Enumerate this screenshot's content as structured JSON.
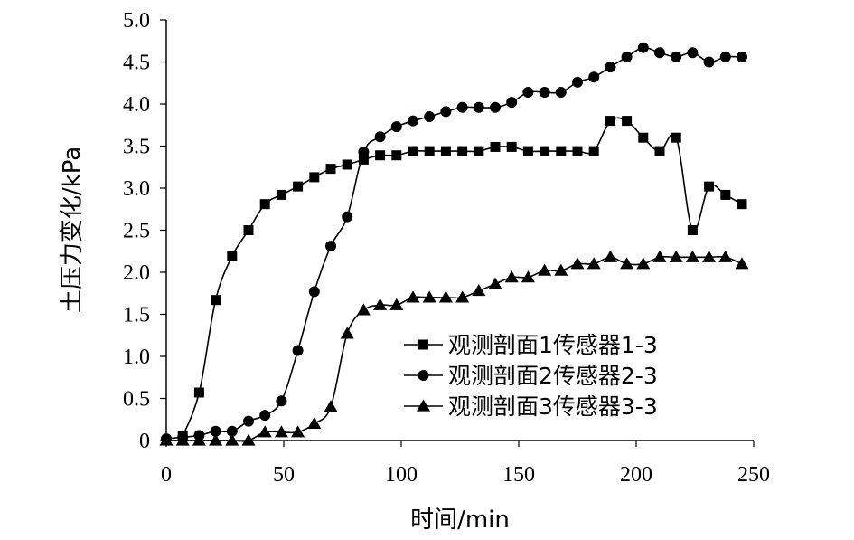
{
  "chart_data": {
    "type": "line",
    "title": "",
    "xlabel": "时间/min",
    "ylabel": "土压力变化/kPa",
    "xlim": [
      0,
      250
    ],
    "ylim": [
      0,
      5
    ],
    "x_ticks": [
      "0",
      "50",
      "100",
      "150",
      "200",
      "250"
    ],
    "y_ticks": [
      "0",
      "0.5",
      "1.0",
      "1.5",
      "2.0",
      "2.5",
      "3.0",
      "3.5",
      "4.0",
      "4.5",
      "5.0"
    ],
    "grid": false,
    "legend_position": "bottom-right",
    "series": [
      {
        "name": "观测剖面1传感器1-3",
        "marker": "square",
        "x": [
          7,
          14,
          21,
          28,
          35,
          42,
          49,
          56,
          63,
          70,
          77,
          84,
          91,
          98,
          105,
          112,
          119,
          126,
          133,
          140,
          147,
          154,
          161,
          168,
          175,
          182,
          189,
          196,
          203,
          210,
          217,
          224,
          231,
          238,
          245
        ],
        "y": [
          0.05,
          0.57,
          1.67,
          2.19,
          2.5,
          2.81,
          2.92,
          3.02,
          3.13,
          3.23,
          3.28,
          3.34,
          3.39,
          3.39,
          3.44,
          3.44,
          3.44,
          3.44,
          3.44,
          3.49,
          3.49,
          3.44,
          3.44,
          3.44,
          3.44,
          3.44,
          3.8,
          3.8,
          3.6,
          3.44,
          3.6,
          2.5,
          3.02,
          2.92,
          2.81
        ]
      },
      {
        "name": "观测剖面2传感器2-3",
        "marker": "circle",
        "x": [
          0,
          7,
          14,
          21,
          28,
          35,
          42,
          49,
          56,
          63,
          70,
          77,
          84,
          91,
          98,
          105,
          112,
          119,
          126,
          133,
          140,
          147,
          154,
          161,
          168,
          175,
          182,
          189,
          196,
          203,
          210,
          217,
          224,
          231,
          238,
          245
        ],
        "y": [
          0.02,
          0.04,
          0.06,
          0.11,
          0.11,
          0.23,
          0.3,
          0.47,
          1.07,
          1.77,
          2.31,
          2.66,
          3.43,
          3.61,
          3.73,
          3.8,
          3.85,
          3.91,
          3.96,
          3.96,
          3.96,
          4.02,
          4.14,
          4.14,
          4.14,
          4.26,
          4.32,
          4.44,
          4.56,
          4.67,
          4.61,
          4.56,
          4.61,
          4.5,
          4.56,
          4.56
        ]
      },
      {
        "name": "观测剖面3传感器3-3",
        "marker": "triangle",
        "x": [
          0,
          7,
          14,
          21,
          28,
          35,
          42,
          49,
          56,
          63,
          70,
          77,
          84,
          91,
          98,
          105,
          112,
          119,
          126,
          133,
          140,
          147,
          154,
          161,
          168,
          175,
          182,
          189,
          196,
          203,
          210,
          217,
          224,
          231,
          238,
          245
        ],
        "y": [
          0.0,
          0.0,
          0.0,
          0.0,
          0.0,
          0.0,
          0.1,
          0.1,
          0.1,
          0.2,
          0.4,
          1.27,
          1.55,
          1.61,
          1.61,
          1.7,
          1.7,
          1.7,
          1.7,
          1.78,
          1.86,
          1.94,
          1.94,
          2.02,
          2.02,
          2.1,
          2.1,
          2.18,
          2.1,
          2.1,
          2.18,
          2.18,
          2.18,
          2.18,
          2.18,
          2.1
        ]
      }
    ]
  }
}
